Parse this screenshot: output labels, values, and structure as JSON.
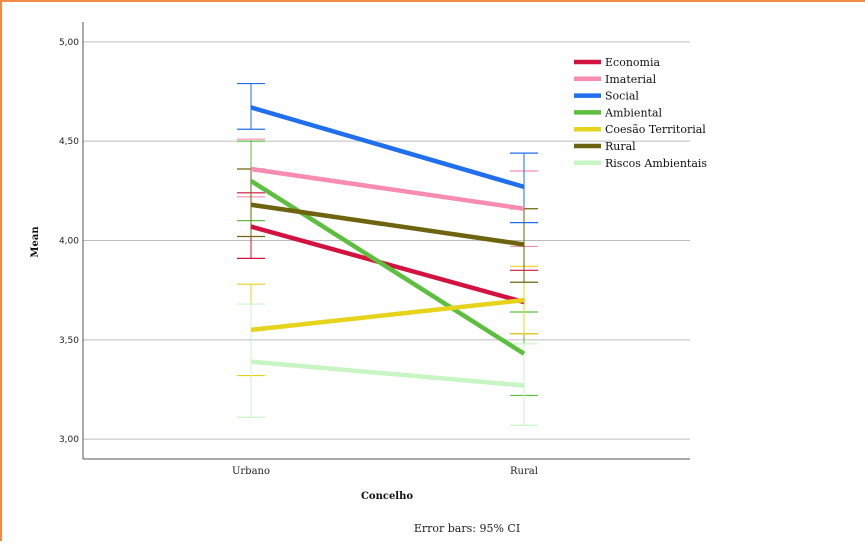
{
  "chart_data": {
    "type": "line",
    "xlabel": "Concelho",
    "ylabel": "Mean",
    "categories": [
      "Urbano",
      "Rural"
    ],
    "ylim": [
      2.9,
      5.1
    ],
    "yticks": [
      "5,00",
      "4,50",
      "4,00",
      "3,50",
      "3,00"
    ],
    "ytick_values": [
      5.0,
      4.5,
      4.0,
      3.5,
      3.0
    ],
    "grid": true,
    "legend_position": "top-right",
    "footnote": "Error bars: 95% CI",
    "series": [
      {
        "name": "Economia",
        "color": "#d4123f",
        "values": [
          4.07,
          3.69
        ],
        "ci_low": [
          3.91,
          3.53
        ],
        "ci_high": [
          4.24,
          3.85
        ]
      },
      {
        "name": "Imaterial",
        "color": "#f88cb0",
        "values": [
          4.36,
          4.16
        ],
        "ci_low": [
          4.22,
          3.97
        ],
        "ci_high": [
          4.51,
          4.35
        ]
      },
      {
        "name": "Social",
        "color": "#1f6fef",
        "values": [
          4.67,
          4.27
        ],
        "ci_low": [
          4.56,
          4.09
        ],
        "ci_high": [
          4.79,
          4.44
        ]
      },
      {
        "name": "Ambiental",
        "color": "#5cbf3e",
        "values": [
          4.3,
          3.43
        ],
        "ci_low": [
          4.1,
          3.22
        ],
        "ci_high": [
          4.5,
          3.64
        ]
      },
      {
        "name": "Coesão Territorial",
        "color": "#e6d41c",
        "values": [
          3.55,
          3.7
        ],
        "ci_low": [
          3.32,
          3.53
        ],
        "ci_high": [
          3.78,
          3.87
        ]
      },
      {
        "name": "Rural",
        "color": "#6e6410",
        "values": [
          4.18,
          3.98
        ],
        "ci_low": [
          4.02,
          3.79
        ],
        "ci_high": [
          4.36,
          4.16
        ]
      },
      {
        "name": "Riscos Ambientais",
        "color": "#c8f5c4",
        "values": [
          3.39,
          3.27
        ],
        "ci_low": [
          3.11,
          3.07
        ],
        "ci_high": [
          3.68,
          3.48
        ]
      }
    ]
  }
}
